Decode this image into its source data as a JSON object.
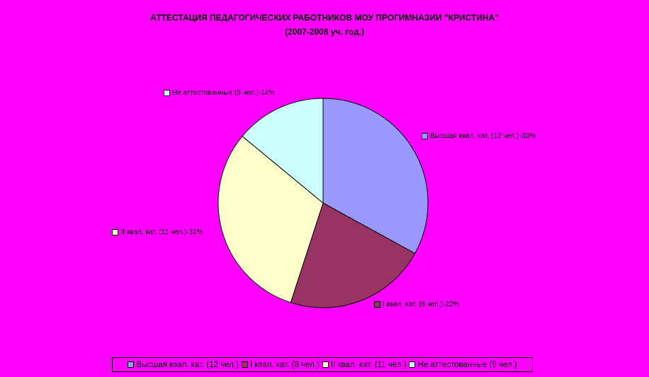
{
  "chart_data": {
    "type": "pie",
    "title": "АТТЕСТАЦИЯ ПЕДАГОГИЧЕСКИХ РАБОТНИКОВ МОУ ПРОГИМНАЗИИ \"КРИСТИНА\"",
    "subtitle": "(2007-2008 уч. год.)",
    "categories": [
      "Высшая квал. кат. (12 чел.)",
      "I квал. кат. (8 чел.)",
      "II квал. кат. (11 чел.)",
      "Не аттестованные (5 чел.)"
    ],
    "values": [
      33,
      22,
      31,
      14
    ],
    "value_labels": [
      "Высшая квал. кат. (12 чел.)-33%",
      "I квал. кат. (8 чел.)-22%",
      "II квал. кат. (11 чел.)-31%",
      "Не аттестованные (5 чел.)-14%"
    ],
    "colors": [
      "#9999ff",
      "#993366",
      "#ffffcc",
      "#ccffff"
    ],
    "legend": "bottom"
  }
}
